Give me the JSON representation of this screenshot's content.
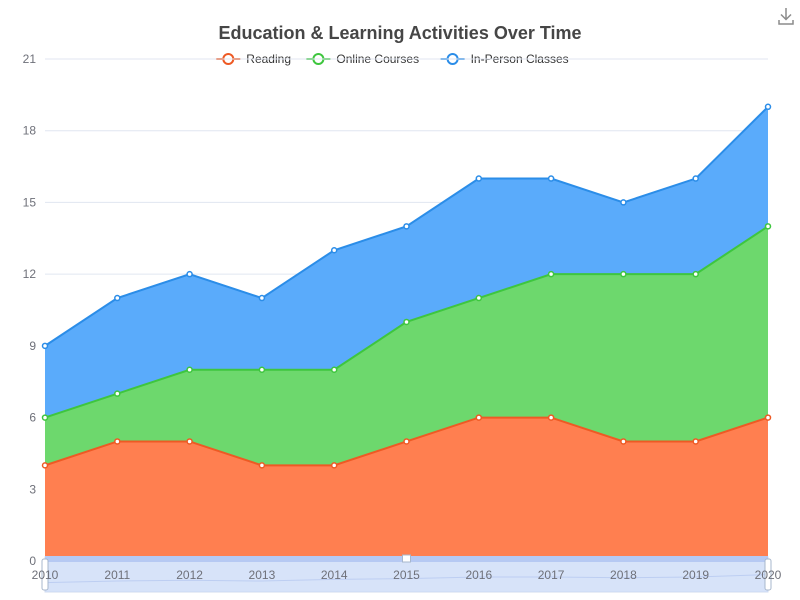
{
  "toolbox": {
    "download_icon": "download-icon"
  },
  "chart_data": {
    "type": "area",
    "stacked": true,
    "title": "Education & Learning Activities Over Time",
    "xlabel": "",
    "ylabel": "",
    "x": [
      "2010",
      "2011",
      "2012",
      "2013",
      "2014",
      "2015",
      "2016",
      "2017",
      "2018",
      "2019",
      "2020"
    ],
    "ylim": [
      0,
      21
    ],
    "yticks": [
      0,
      3,
      6,
      9,
      12,
      15,
      18,
      21
    ],
    "grid": true,
    "legend_position": "top-center",
    "series": [
      {
        "name": "Reading",
        "color": "#ee5a24",
        "fill": "#ff7f50",
        "values": [
          4,
          5,
          5,
          4,
          4,
          5,
          6,
          6,
          5,
          5,
          6
        ]
      },
      {
        "name": "Online Courses",
        "color": "#3ec63e",
        "fill": "#6dd86d",
        "values": [
          2,
          2,
          3,
          4,
          4,
          5,
          5,
          6,
          7,
          7,
          8
        ]
      },
      {
        "name": "In-Person Classes",
        "color": "#2b8de8",
        "fill": "#5aabfb",
        "values": [
          3,
          4,
          4,
          3,
          5,
          4,
          5,
          4,
          3,
          4,
          5
        ]
      }
    ],
    "data_zoom": {
      "start": "2010",
      "end": "2020"
    }
  }
}
